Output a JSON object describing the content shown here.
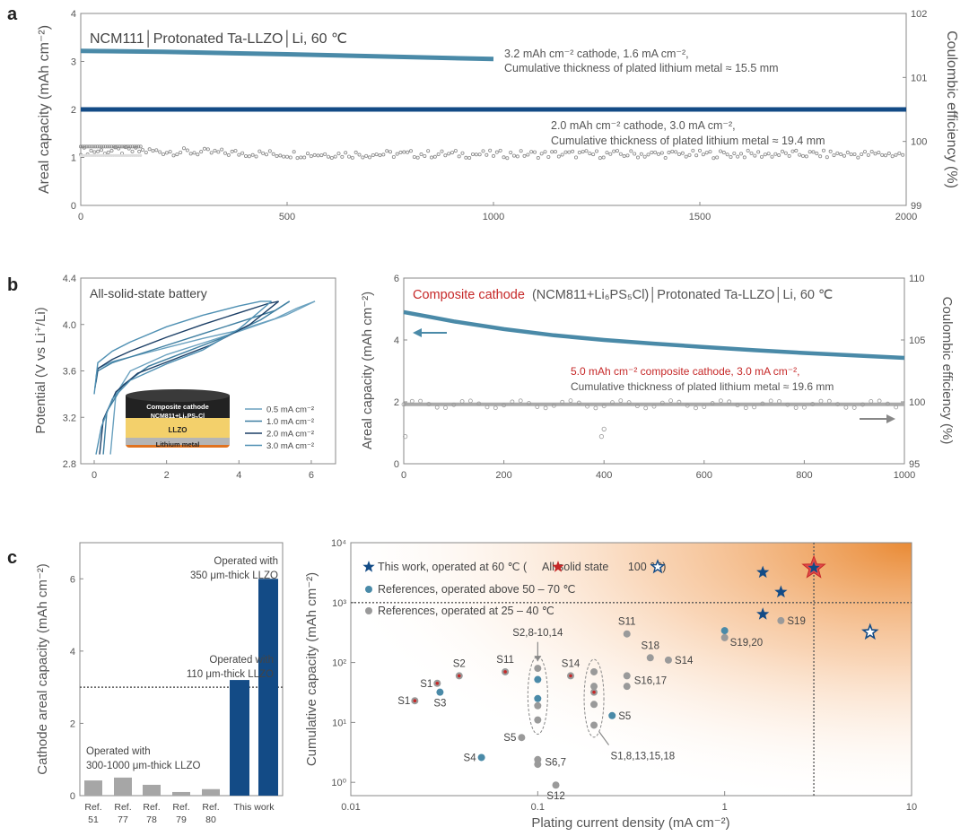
{
  "colors": {
    "teal": "#4a8aa8",
    "navy": "#134b86",
    "gray_points": "#888888",
    "light_gray": "#cccccc",
    "red": "#c62828",
    "axis": "#888888",
    "orange": "#e8842a"
  },
  "panels": {
    "a": {
      "label": "a",
      "header": "NCM111│Protonated Ta-LLZO│Li, 60 ℃",
      "ylabel_left": "Areal capacity (mAh cm⁻²)",
      "ylabel_right": "Coulombic efficiency (%)",
      "yticks_left": [
        "0",
        "1",
        "2",
        "3",
        "4"
      ],
      "yticks_right": [
        "99",
        "100",
        "101",
        "102"
      ],
      "xticks": [
        "0",
        "500",
        "1000",
        "1500",
        "2000"
      ],
      "annot1_line1": "3.2 mAh cm⁻² cathode, 1.6 mA cm⁻²,",
      "annot1_line2": "Cumulative thickness of plated lithium metal ≈ 15.5 mm",
      "annot2_line1": "2.0 mAh cm⁻² cathode, 3.0 mA cm⁻²,",
      "annot2_line2": "Cumulative thickness of plated lithium metal ≈ 19.4 mm"
    },
    "b_left": {
      "label": "b",
      "title": "All-solid-state battery",
      "ylabel": "Potential (V vs Li⁺/Li)",
      "yticks": [
        "2.8",
        "3.2",
        "3.6",
        "4.0",
        "4.4"
      ],
      "xticks": [
        "0",
        "2",
        "4",
        "6"
      ],
      "legend": [
        "0.5 mA cm⁻²",
        "1.0 mA cm⁻²",
        "2.0 mA cm⁻²",
        "3.0 mA cm⁻²"
      ],
      "inset_top_line1": "Composite cathode",
      "inset_top_line2": "NCM811+Li₆PS₅Cl",
      "inset_mid": "LLZO",
      "inset_bottom": "Lithium metal"
    },
    "b_right": {
      "header_red": "Composite cathode",
      "header_gray": "(NCM811+Li₆PS₅Cl)│Protonated Ta-LLZO│Li, 60 ℃",
      "ylabel_left": "Areal capacity (mAh cm⁻²)",
      "ylabel_right": "Coulombic efficiency (%)",
      "yticks_left": [
        "0",
        "2",
        "4",
        "6"
      ],
      "yticks_right": [
        "95",
        "100",
        "105",
        "110"
      ],
      "xticks": [
        "0",
        "200",
        "400",
        "600",
        "800",
        "1000"
      ],
      "annot_line1": "5.0 mAh cm⁻² composite cathode, 3.0 mA cm⁻²,",
      "annot_line2": "Cumulative thickness of plated lithium metal ≈ 19.6 mm"
    },
    "c_left": {
      "label": "c",
      "ylabel": "Cathode areal capacity (mAh cm⁻²)",
      "yticks": [
        "0",
        "2",
        "4",
        "6"
      ],
      "annot_top_line1": "Operated with",
      "annot_top_line2": "350 μm-thick LLZO",
      "annot_mid_line1": "Operated with",
      "annot_mid_line2": "110 μm-thick LLZO",
      "annot_low_line1": "Operated with",
      "annot_low_line2": "300-1000 μm-thick LLZO"
    },
    "c_right": {
      "xlabel": "Plating current density (mA cm⁻²)",
      "ylabel": "Cumulative capacity (mAh cm⁻²)",
      "xticks": [
        "0.01",
        "0.1",
        "1",
        "10"
      ],
      "yticks": [
        "10⁰",
        "10¹",
        "10²",
        "10³",
        "10⁴"
      ],
      "legend_1a": "This work, operated at 60 ℃ (",
      "legend_1b": "All-solid state",
      "legend_1c": "100 ℃)",
      "legend_2": "References, operated above 50 – 70 ℃",
      "legend_3": "References, operated at 25 – 40 ℃"
    }
  },
  "chart_data": [
    {
      "panel": "a",
      "type": "line",
      "xlim": [
        0,
        2000
      ],
      "ylim": [
        0,
        4
      ],
      "y2lim": [
        99,
        102
      ],
      "series": [
        {
          "x": [
            0,
            200,
            500,
            1000
          ],
          "values": [
            3.22,
            3.2,
            3.15,
            3.05
          ]
        },
        {
          "x": [
            0,
            500,
            1000,
            1500,
            2000
          ],
          "values": [
            2.0,
            2.0,
            2.0,
            2.0,
            2.0
          ]
        },
        {
          "axis": "right",
          "x": [
            0,
            150,
            500,
            1000,
            1500,
            2000
          ],
          "values": [
            99.85,
            99.85,
            99.8,
            99.8,
            99.8,
            99.8
          ]
        }
      ]
    },
    {
      "panel": "b_left",
      "type": "line",
      "xlim": [
        0,
        6.2
      ],
      "ylim": [
        2.8,
        4.4
      ],
      "series": [
        {
          "name": "0.5 mA cm⁻²",
          "x": [
            0.05,
            0.1,
            0.5,
            1,
            2,
            3,
            4,
            5,
            5.6,
            6.1
          ],
          "values": [
            3.55,
            3.62,
            3.68,
            3.72,
            3.8,
            3.88,
            3.95,
            4.05,
            4.14,
            4.2
          ]
        },
        {
          "name": "1.0 mA cm⁻²",
          "x": [
            0.05,
            0.1,
            0.5,
            1,
            2,
            3,
            4,
            5,
            5.4
          ],
          "values": [
            3.5,
            3.6,
            3.67,
            3.72,
            3.82,
            3.92,
            4.02,
            4.12,
            4.2
          ]
        },
        {
          "name": "2.0 mA cm⁻²",
          "x": [
            0.02,
            0.1,
            0.5,
            1,
            2,
            3,
            4,
            4.8,
            5.1
          ],
          "values": [
            3.45,
            3.62,
            3.7,
            3.77,
            3.89,
            4.0,
            4.1,
            4.18,
            4.2
          ]
        },
        {
          "name": "3.0 mA cm⁻²",
          "x": [
            0.0,
            0.1,
            0.5,
            1,
            2,
            3,
            4,
            4.6,
            4.9
          ],
          "values": [
            3.4,
            3.67,
            3.77,
            3.85,
            3.98,
            4.08,
            4.16,
            4.2,
            4.2
          ]
        }
      ]
    },
    {
      "panel": "b_right",
      "type": "line",
      "xlim": [
        0,
        1000
      ],
      "ylim": [
        0,
        6
      ],
      "y2lim": [
        95,
        110
      ],
      "series": [
        {
          "x": [
            0,
            50,
            100,
            200,
            300,
            400,
            500,
            600,
            700,
            800,
            900,
            1000
          ],
          "values": [
            4.9,
            4.75,
            4.6,
            4.35,
            4.15,
            4.0,
            3.88,
            3.77,
            3.67,
            3.58,
            3.5,
            3.42
          ]
        },
        {
          "axis": "right",
          "x": [
            0,
            1000
          ],
          "values": [
            99.8,
            99.8
          ]
        }
      ]
    },
    {
      "panel": "c_left",
      "type": "bar",
      "categories": [
        "Ref. 51",
        "Ref. 77",
        "Ref. 78",
        "Ref. 79",
        "Ref. 80",
        "This work",
        "This work"
      ],
      "values": [
        0.42,
        0.5,
        0.3,
        0.1,
        0.18,
        3.2,
        6.0
      ],
      "ylim": [
        0,
        7
      ],
      "reference_line": 3.0
    },
    {
      "panel": "c_right",
      "type": "scatter",
      "xscale": "log",
      "yscale": "log",
      "xlim": [
        0.01,
        10
      ],
      "ylim": [
        0.6,
        10000
      ],
      "points": [
        {
          "label": "S1",
          "x": 0.022,
          "y": 23,
          "group": "ref_low_red"
        },
        {
          "label": "S1",
          "x": 0.029,
          "y": 45,
          "group": "ref_low_red"
        },
        {
          "label": "S3",
          "x": 0.03,
          "y": 32,
          "group": "ref_high"
        },
        {
          "label": "S2",
          "x": 0.038,
          "y": 60,
          "group": "ref_low_red"
        },
        {
          "label": "S4",
          "x": 0.05,
          "y": 2.6,
          "group": "ref_high"
        },
        {
          "label": "S11",
          "x": 0.067,
          "y": 70,
          "group": "ref_low_red"
        },
        {
          "label": "S5",
          "x": 0.082,
          "y": 5.6,
          "group": "ref_low"
        },
        {
          "label": "S6,7",
          "x": 0.1,
          "y": 2.4,
          "group": "ref_low"
        },
        {
          "label": "S6,7",
          "x": 0.1,
          "y": 2.0,
          "group": "ref_low"
        },
        {
          "label": "S12",
          "x": 0.125,
          "y": 0.9,
          "group": "ref_low"
        },
        {
          "label": "S2,8-10,14",
          "x": 0.1,
          "y": 80,
          "group": "ref_low"
        },
        {
          "label": "S2,8-10,14",
          "x": 0.1,
          "y": 52,
          "group": "ref_high"
        },
        {
          "label": "S2,8-10,14",
          "x": 0.1,
          "y": 25,
          "group": "ref_high"
        },
        {
          "label": "S2,8-10,14",
          "x": 0.1,
          "y": 19,
          "group": "ref_low"
        },
        {
          "label": "S2,8-10,14",
          "x": 0.1,
          "y": 11,
          "group": "ref_low"
        },
        {
          "label": "S14",
          "x": 0.15,
          "y": 60,
          "group": "ref_low_red"
        },
        {
          "label": "S1,8,13,15,18",
          "x": 0.2,
          "y": 70,
          "group": "ref_low"
        },
        {
          "label": "S1,8,13,15,18",
          "x": 0.2,
          "y": 40,
          "group": "ref_low"
        },
        {
          "label": "S1,8,13,15,18",
          "x": 0.2,
          "y": 32,
          "group": "ref_low_red"
        },
        {
          "label": "S1,8,13,15,18",
          "x": 0.2,
          "y": 20,
          "group": "ref_low"
        },
        {
          "label": "S1,8,13,15,18",
          "x": 0.2,
          "y": 9,
          "group": "ref_low"
        },
        {
          "label": "S5",
          "x": 0.25,
          "y": 13,
          "group": "ref_high"
        },
        {
          "label": "S11",
          "x": 0.3,
          "y": 300,
          "group": "ref_low"
        },
        {
          "label": "S16,17",
          "x": 0.3,
          "y": 60,
          "group": "ref_low"
        },
        {
          "label": "S16,17",
          "x": 0.3,
          "y": 40,
          "group": "ref_low"
        },
        {
          "label": "S18",
          "x": 0.4,
          "y": 120,
          "group": "ref_low"
        },
        {
          "label": "S14",
          "x": 0.5,
          "y": 110,
          "group": "ref_low"
        },
        {
          "label": "S19,20",
          "x": 1.0,
          "y": 340,
          "group": "ref_high"
        },
        {
          "label": "S19,20",
          "x": 1.0,
          "y": 260,
          "group": "ref_low"
        },
        {
          "label": "S19",
          "x": 2.0,
          "y": 500,
          "group": "ref_low"
        },
        {
          "x": 1.6,
          "y": 3200,
          "group": "this_work"
        },
        {
          "x": 2.0,
          "y": 1500,
          "group": "this_work"
        },
        {
          "x": 1.6,
          "y": 640,
          "group": "this_work"
        },
        {
          "x": 3.0,
          "y": 3800,
          "group": "this_work_solid_state"
        },
        {
          "x": 6.0,
          "y": 320,
          "group": "this_work_100C"
        }
      ],
      "threshold_x": 3.0,
      "threshold_y": 1000
    }
  ]
}
